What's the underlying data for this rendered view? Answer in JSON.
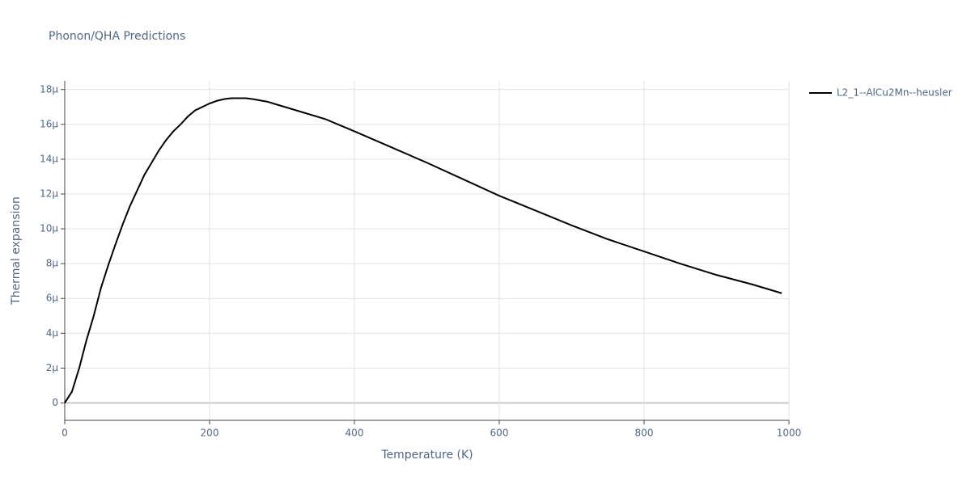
{
  "chart_data": {
    "type": "line",
    "title": "Phonon/QHA Predictions",
    "x_label": "Temperature (K)",
    "y_label": "Thermal expansion",
    "x": [
      0,
      10,
      20,
      30,
      40,
      50,
      60,
      70,
      80,
      90,
      100,
      110,
      120,
      130,
      140,
      150,
      160,
      170,
      180,
      190,
      200,
      210,
      220,
      230,
      240,
      250,
      260,
      280,
      300,
      320,
      340,
      360,
      380,
      400,
      450,
      500,
      550,
      600,
      650,
      700,
      750,
      800,
      850,
      900,
      950,
      990
    ],
    "series": [
      {
        "name": "L2_1--AlCu2Mn--heusler",
        "color": "#000000",
        "values": [
          0,
          6.5e-07,
          2e-06,
          3.6e-06,
          5e-06,
          6.6e-06,
          7.9e-06,
          9.1e-06,
          1.025e-05,
          1.13e-05,
          1.22e-05,
          1.31e-05,
          1.38e-05,
          1.45e-05,
          1.51e-05,
          1.56e-05,
          1.6e-05,
          1.645e-05,
          1.68e-05,
          1.7e-05,
          1.72e-05,
          1.735e-05,
          1.745e-05,
          1.75e-05,
          1.75e-05,
          1.75e-05,
          1.745e-05,
          1.73e-05,
          1.705e-05,
          1.68e-05,
          1.655e-05,
          1.63e-05,
          1.595e-05,
          1.56e-05,
          1.47e-05,
          1.38e-05,
          1.285e-05,
          1.19e-05,
          1.105e-05,
          1.02e-05,
          9.4e-06,
          8.7e-06,
          8e-06,
          7.35e-06,
          6.8e-06,
          6.3e-06
        ]
      }
    ],
    "xlim": [
      0,
      1000
    ],
    "xticks": [
      0,
      200,
      400,
      600,
      800,
      1000
    ],
    "ylim": [
      -1e-06,
      1.85e-05
    ],
    "yticks": [
      0,
      {
        "value": 2e-06,
        "label": "2μ"
      },
      {
        "value": 4e-06,
        "label": "4μ"
      },
      {
        "value": 6e-06,
        "label": "6μ"
      },
      {
        "value": 8e-06,
        "label": "8μ"
      },
      {
        "value": 1e-05,
        "label": "10μ"
      },
      {
        "value": 1.2e-05,
        "label": "12μ"
      },
      {
        "value": 1.4e-05,
        "label": "14μ"
      },
      {
        "value": 1.6e-05,
        "label": "16μ"
      },
      {
        "value": 1.8e-05,
        "label": "18μ"
      }
    ],
    "grid": true,
    "legend": "right"
  }
}
